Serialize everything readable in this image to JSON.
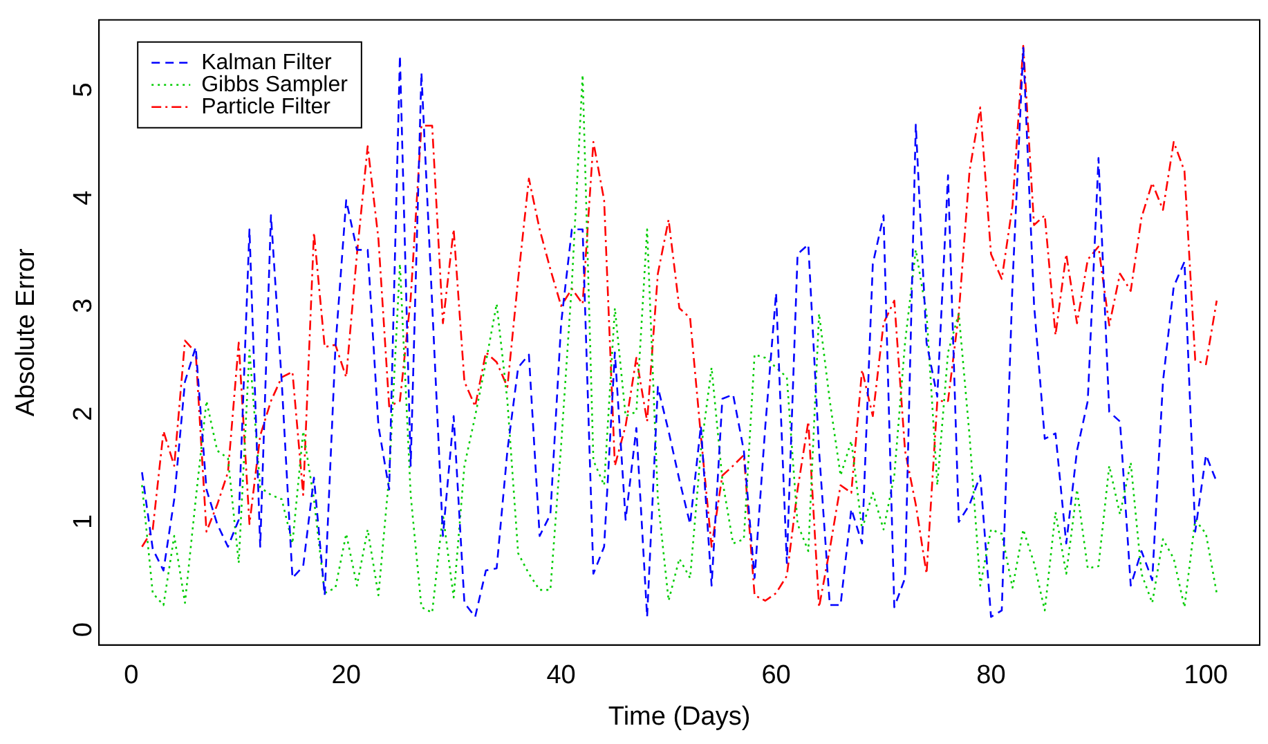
{
  "chart_data": {
    "type": "line",
    "xlabel": "Time (Days)",
    "ylabel": "Absolute Error",
    "x": [
      1,
      2,
      3,
      4,
      5,
      6,
      7,
      8,
      9,
      10,
      11,
      12,
      13,
      14,
      15,
      16,
      17,
      18,
      19,
      20,
      21,
      22,
      23,
      24,
      25,
      26,
      27,
      28,
      29,
      30,
      31,
      32,
      33,
      34,
      35,
      36,
      37,
      38,
      39,
      40,
      41,
      42,
      43,
      44,
      45,
      46,
      47,
      48,
      49,
      50,
      51,
      52,
      53,
      54,
      55,
      56,
      57,
      58,
      59,
      60,
      61,
      62,
      63,
      64,
      65,
      66,
      67,
      68,
      69,
      70,
      71,
      72,
      73,
      74,
      75,
      76,
      77,
      78,
      79,
      80,
      81,
      82,
      83,
      84,
      85,
      86,
      87,
      88,
      89,
      90,
      91,
      92,
      93,
      94,
      95,
      96,
      97,
      98,
      99,
      100,
      101
    ],
    "xlim": [
      -3,
      105
    ],
    "ylim": [
      -0.21,
      5.58
    ],
    "xticks": [
      0,
      20,
      40,
      60,
      80,
      100
    ],
    "yticks": [
      0,
      1,
      2,
      3,
      4,
      5
    ],
    "grid": false,
    "legend": "top left",
    "marker": "none",
    "series": [
      {
        "name": "Kalman Filter",
        "color": "#0000ff",
        "line_style": "dashed",
        "values": [
          1.39,
          0.68,
          0.48,
          1.14,
          2.23,
          2.55,
          1.23,
          0.91,
          0.7,
          0.95,
          3.64,
          0.7,
          3.77,
          2.23,
          0.41,
          0.52,
          1.34,
          0.25,
          2.55,
          3.91,
          3.45,
          3.45,
          1.82,
          1.23,
          5.25,
          1.45,
          5.09,
          2.95,
          0.8,
          1.91,
          0.18,
          0.05,
          0.48,
          0.5,
          1.59,
          2.36,
          2.48,
          0.8,
          1.0,
          2.77,
          3.64,
          3.64,
          0.45,
          0.7,
          2.5,
          0.95,
          1.8,
          0.05,
          2.18,
          1.77,
          1.32,
          0.91,
          1.82,
          0.34,
          2.07,
          2.11,
          1.59,
          0.41,
          1.82,
          3.05,
          0.55,
          3.41,
          3.5,
          1.59,
          0.16,
          0.16,
          1.05,
          0.73,
          3.32,
          3.77,
          0.14,
          0.41,
          4.61,
          2.59,
          2.09,
          4.14,
          0.93,
          1.09,
          1.36,
          0.05,
          0.11,
          3.14,
          5.32,
          2.95,
          1.7,
          1.75,
          0.73,
          1.59,
          2.05,
          4.3,
          1.95,
          1.86,
          0.34,
          0.66,
          0.39,
          2.23,
          3.11,
          3.34,
          0.84,
          1.55,
          1.3
        ]
      },
      {
        "name": "Gibbs Sampler",
        "color": "#00cc00",
        "line_style": "dotted",
        "values": [
          1.27,
          0.27,
          0.16,
          0.8,
          0.18,
          1.14,
          2.05,
          1.59,
          1.52,
          0.55,
          2.52,
          1.25,
          1.18,
          1.14,
          0.73,
          1.77,
          1.14,
          0.27,
          0.32,
          0.82,
          0.34,
          0.86,
          0.25,
          1.36,
          3.32,
          1.18,
          0.14,
          0.09,
          1.0,
          0.23,
          1.45,
          1.91,
          2.41,
          2.95,
          2.05,
          0.64,
          0.45,
          0.3,
          0.3,
          1.64,
          3.14,
          5.07,
          1.5,
          1.27,
          2.91,
          1.91,
          1.95,
          3.64,
          1.14,
          0.2,
          0.59,
          0.41,
          1.59,
          2.36,
          1.32,
          0.73,
          0.77,
          2.48,
          2.45,
          2.36,
          2.27,
          0.91,
          0.66,
          2.86,
          2.05,
          1.36,
          1.68,
          0.86,
          1.2,
          0.86,
          1.36,
          2.59,
          3.45,
          2.86,
          1.27,
          2.5,
          2.86,
          1.73,
          0.34,
          0.86,
          0.82,
          0.32,
          0.86,
          0.55,
          0.11,
          1.02,
          0.45,
          1.23,
          0.5,
          0.52,
          1.45,
          1.0,
          1.48,
          0.45,
          0.18,
          0.77,
          0.59,
          0.14,
          0.95,
          0.82,
          0.27
        ]
      },
      {
        "name": "Particle Filter",
        "color": "#ff0000",
        "line_style": "dashdot",
        "values": [
          0.7,
          0.86,
          1.77,
          1.45,
          2.61,
          2.5,
          0.84,
          1.09,
          1.39,
          2.59,
          0.91,
          1.73,
          2.05,
          2.27,
          2.32,
          1.18,
          3.61,
          2.55,
          2.57,
          2.27,
          3.41,
          4.41,
          3.55,
          2.0,
          2.05,
          3.0,
          4.6,
          4.6,
          2.77,
          3.64,
          2.23,
          2.0,
          2.5,
          2.41,
          2.18,
          3.18,
          4.11,
          3.64,
          3.27,
          2.93,
          3.09,
          2.95,
          4.45,
          3.91,
          1.45,
          1.82,
          2.45,
          1.86,
          3.23,
          3.73,
          2.91,
          2.82,
          1.73,
          0.7,
          1.36,
          1.45,
          1.55,
          0.25,
          0.2,
          0.27,
          0.43,
          1.23,
          1.86,
          0.14,
          0.68,
          1.27,
          1.2,
          2.34,
          1.91,
          2.77,
          2.98,
          1.59,
          1.09,
          0.45,
          2.05,
          2.05,
          2.86,
          4.18,
          4.77,
          3.41,
          3.18,
          3.86,
          5.34,
          3.68,
          3.77,
          2.66,
          3.41,
          2.77,
          3.36,
          3.48,
          2.75,
          3.23,
          3.07,
          3.75,
          4.07,
          3.82,
          4.45,
          4.18,
          2.43,
          2.39,
          2.98
        ]
      }
    ]
  }
}
